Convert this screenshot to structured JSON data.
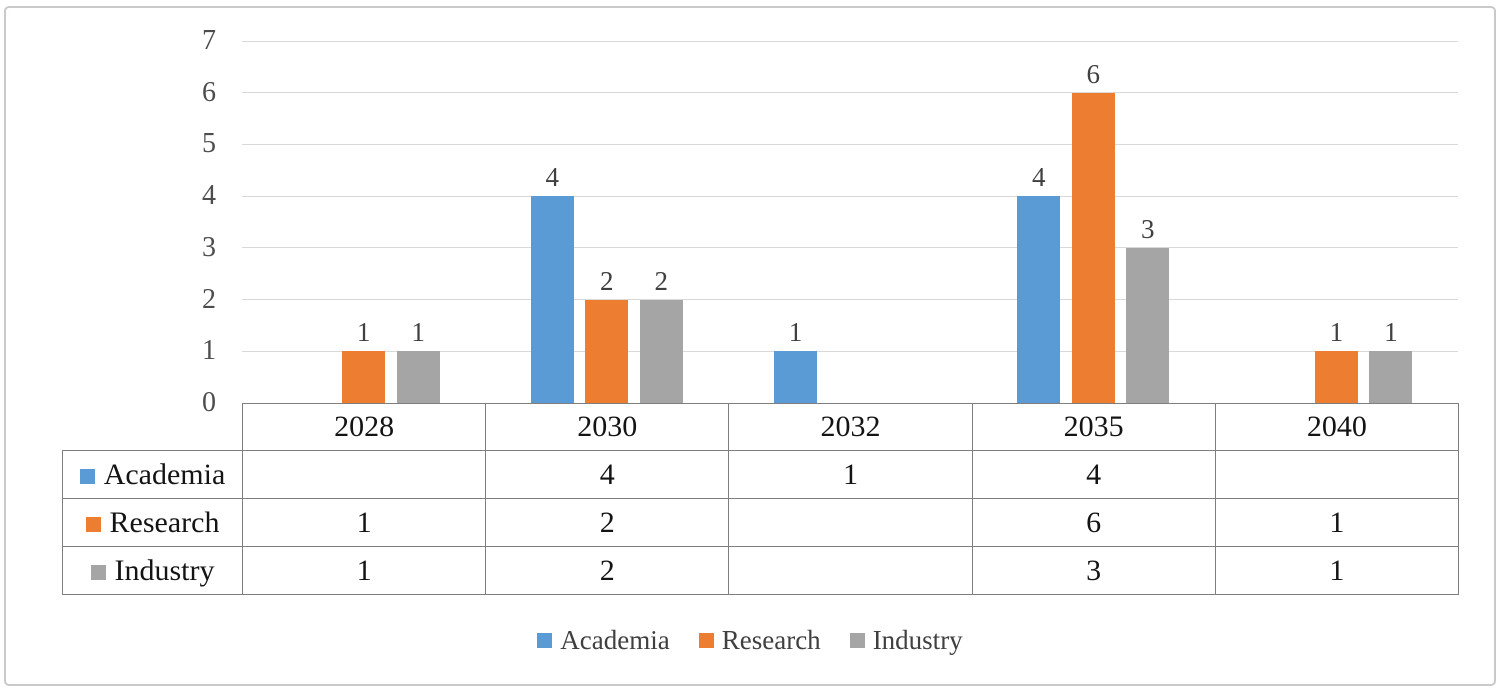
{
  "chart_data": {
    "type": "bar",
    "title": "",
    "xlabel": "",
    "ylabel": "",
    "categories": [
      "2028",
      "2030",
      "2032",
      "2035",
      "2040"
    ],
    "series": [
      {
        "name": "Academia",
        "color": "#5B9BD5",
        "values": [
          null,
          4,
          1,
          4,
          null
        ]
      },
      {
        "name": "Research",
        "color": "#ED7D31",
        "values": [
          1,
          2,
          null,
          6,
          1
        ]
      },
      {
        "name": "Industry",
        "color": "#A5A5A5",
        "values": [
          1,
          2,
          null,
          3,
          1
        ]
      }
    ],
    "ylim": [
      0,
      7
    ],
    "yticks": [
      0,
      1,
      2,
      3,
      4,
      5,
      6,
      7
    ],
    "grid": "horizontal",
    "gridline_color": "#d9d9d9",
    "legend_position": "bottom",
    "data_table_shown": true,
    "bar_labels_shown": true
  },
  "frame": {
    "border_color": "#c9c9c9",
    "background": "#ffffff"
  }
}
